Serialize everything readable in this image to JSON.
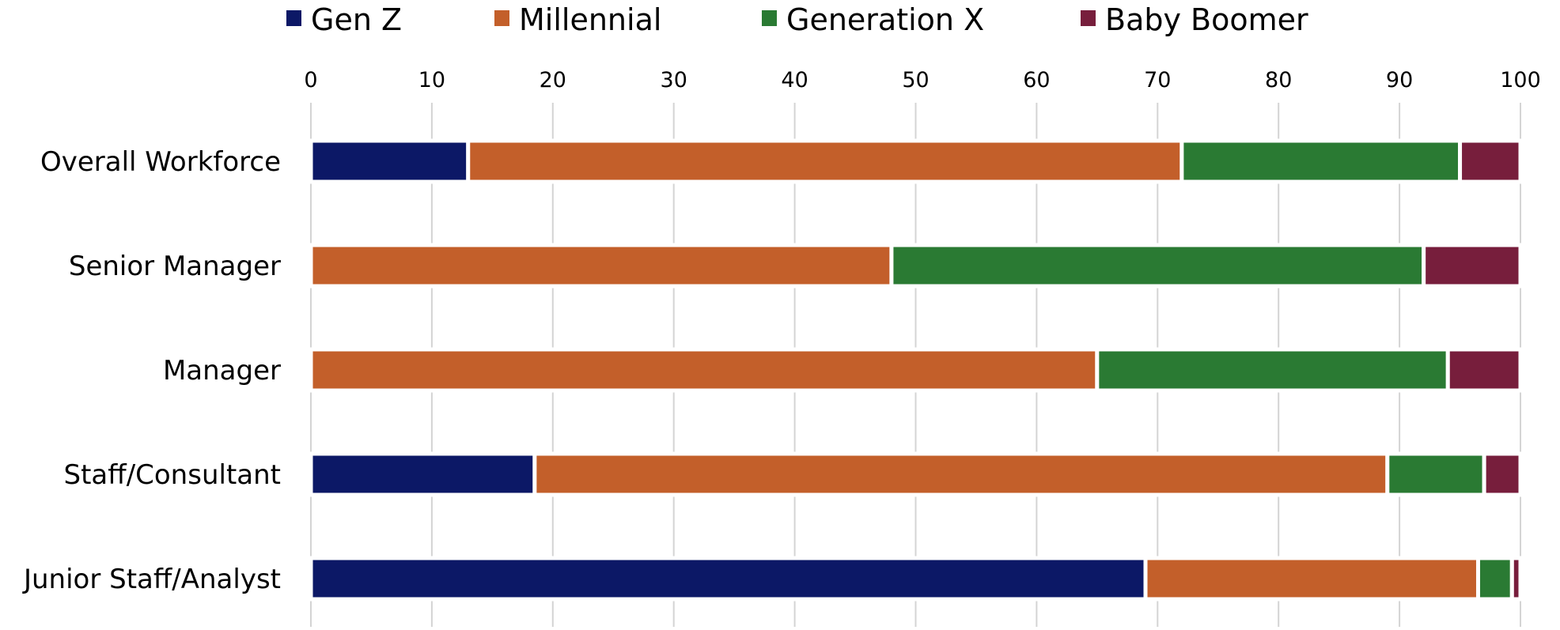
{
  "chart_data": {
    "type": "bar",
    "orientation": "horizontal",
    "stacked": true,
    "title": "",
    "xlabel": "",
    "ylabel": "",
    "xlim": [
      0,
      100
    ],
    "x_ticks": [
      "0",
      "10",
      "20",
      "30",
      "40",
      "50",
      "60",
      "70",
      "80",
      "90",
      "100"
    ],
    "grid": true,
    "legend_position": "top",
    "categories": [
      "Overall Workforce",
      "Senior Manager",
      "Manager",
      "Staff/Consultant",
      "Junior Staff/Analyst"
    ],
    "series": [
      {
        "name": "Gen Z",
        "color": "#0c1866",
        "values": [
          13,
          0,
          0,
          18.5,
          69
        ]
      },
      {
        "name": "Millennial",
        "color": "#c35f2a",
        "values": [
          59,
          48,
          65,
          70.5,
          27.5
        ]
      },
      {
        "name": "Generation X",
        "color": "#2a7a33",
        "values": [
          23,
          44,
          29,
          8,
          2.8
        ]
      },
      {
        "name": "Baby Boomer",
        "color": "#771e3c",
        "values": [
          5,
          8,
          6,
          3,
          0.7
        ]
      }
    ]
  }
}
